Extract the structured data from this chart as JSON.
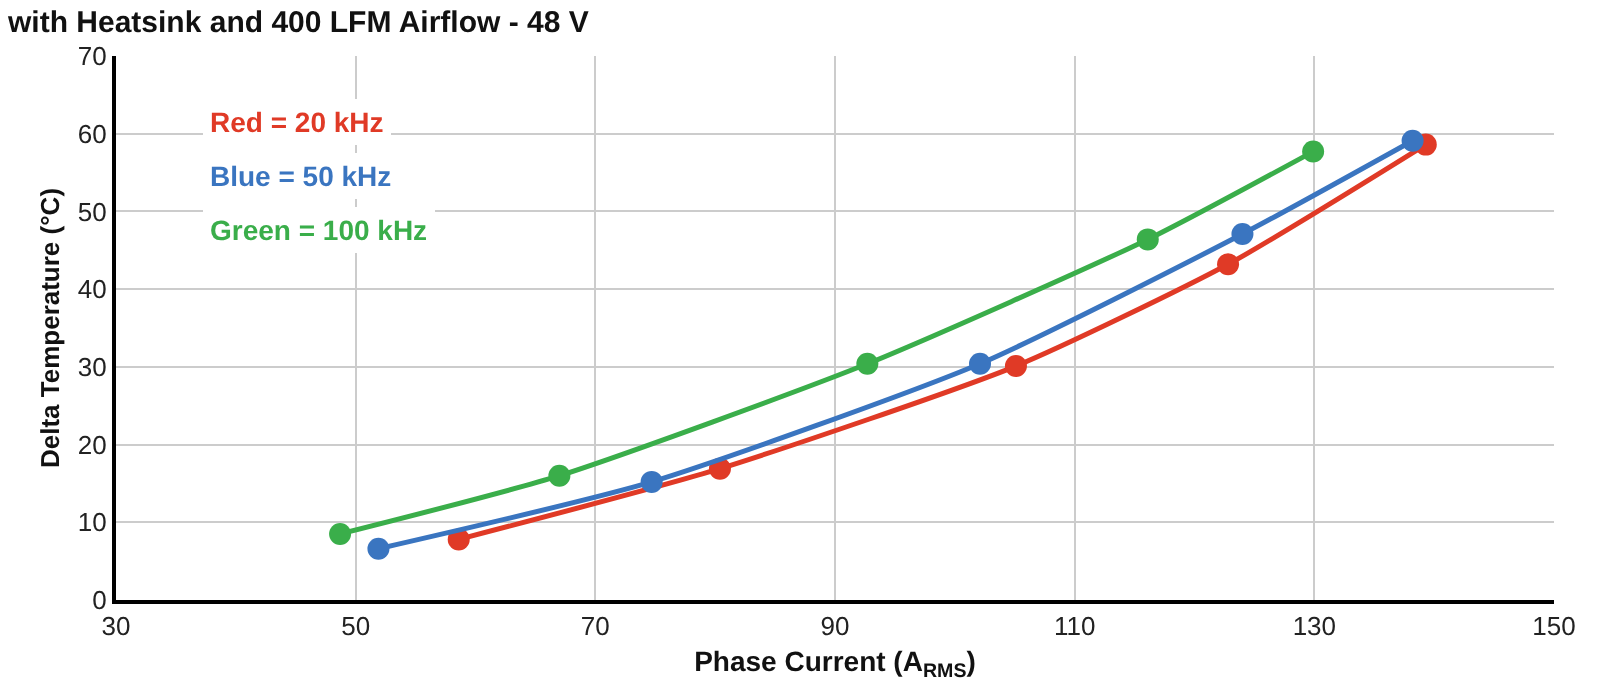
{
  "chart_data": {
    "type": "line",
    "title": "with Heatsink and 400 LFM Airflow - 48 V",
    "xlabel": "Phase Current (A$_{RMS}$)",
    "ylabel": "Delta Temperature (°C)",
    "series": [
      {
        "name": "Red = 20 kHz",
        "color": "#e03a26",
        "x": [
          58.6,
          80.4,
          105.1,
          122.8,
          139.3
        ],
        "values": [
          7.8,
          16.9,
          30.1,
          43.2,
          58.6
        ]
      },
      {
        "name": "Blue = 50 kHz",
        "color": "#3a75c0",
        "x": [
          51.9,
          74.7,
          102.1,
          124,
          138.2
        ],
        "values": [
          6.6,
          15.2,
          30.4,
          47.1,
          59.1
        ]
      },
      {
        "name": "Green = 100 kHz",
        "color": "#3aae4a",
        "x": [
          48.7,
          67,
          92.7,
          116.1,
          129.9
        ],
        "values": [
          8.5,
          16,
          30.4,
          46.4,
          57.7
        ]
      }
    ],
    "xlim": [
      30,
      150
    ],
    "xticks": [
      30,
      50,
      70,
      90,
      110,
      130,
      150
    ],
    "ylim": [
      0,
      70
    ],
    "yticks": [
      0,
      10,
      20,
      30,
      40,
      50,
      60,
      70
    ],
    "grid": true,
    "legend": "top left",
    "marker": "circle",
    "line_style": "solid"
  }
}
